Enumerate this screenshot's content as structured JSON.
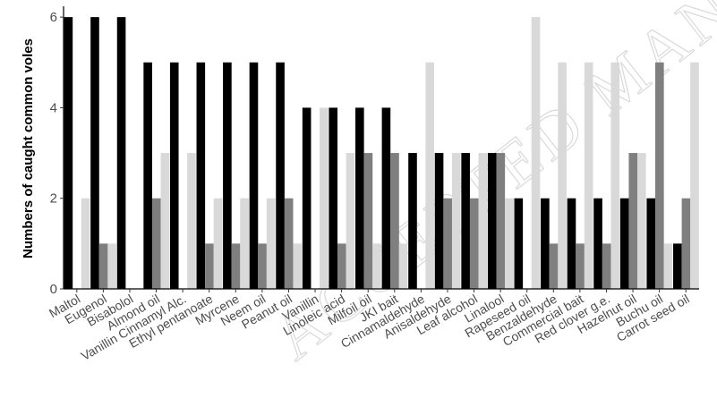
{
  "chart_data": {
    "type": "bar",
    "title": "",
    "xlabel": "",
    "ylabel": "Numbers of caught common voles",
    "ylim": [
      0,
      6.2
    ],
    "yticks": [
      0,
      2,
      4,
      6
    ],
    "grid": false,
    "legend": "none",
    "categories": [
      "Maltol",
      "Eugenol",
      "Bisabolol",
      "Almond oil",
      "Vanillin Cinnamyl Alc.",
      "Ethyl pentanoate",
      "Myrcene",
      "Neem oil",
      "Peanut oil",
      "Vanillin",
      "Linoleic acid",
      "Milfoil oil",
      "JKI bait",
      "Cinnamaldehyde",
      "Anisaldehyde",
      "Leaf alcohol",
      "Linalool",
      "Rapeseed oil",
      "Benzaldehyde",
      "Commercial bait",
      "Red clover g.e.",
      "Hazelnut oil",
      "Buchu oil",
      "Carrot seed oil"
    ],
    "series": [
      {
        "color": "#000000",
        "values": [
          6,
          6,
          6,
          5,
          5,
          5,
          5,
          5,
          5,
          4,
          4,
          4,
          4,
          3,
          3,
          3,
          3,
          2,
          2,
          2,
          2,
          2,
          2,
          1
        ]
      },
      {
        "color": "#7f7f7f",
        "values": [
          0,
          1,
          0,
          2,
          0,
          1,
          1,
          1,
          2,
          0,
          1,
          3,
          3,
          0,
          2,
          2,
          3,
          0,
          1,
          1,
          1,
          3,
          5,
          2
        ]
      },
      {
        "color": "#d9d9d9",
        "values": [
          2,
          1,
          0,
          3,
          3,
          2,
          2,
          2,
          1,
          4,
          3,
          1,
          1,
          5,
          3,
          3,
          2,
          6,
          5,
          5,
          5,
          3,
          1,
          5
        ]
      }
    ]
  },
  "watermark": "ACCEPTED MANUSCRIPT"
}
